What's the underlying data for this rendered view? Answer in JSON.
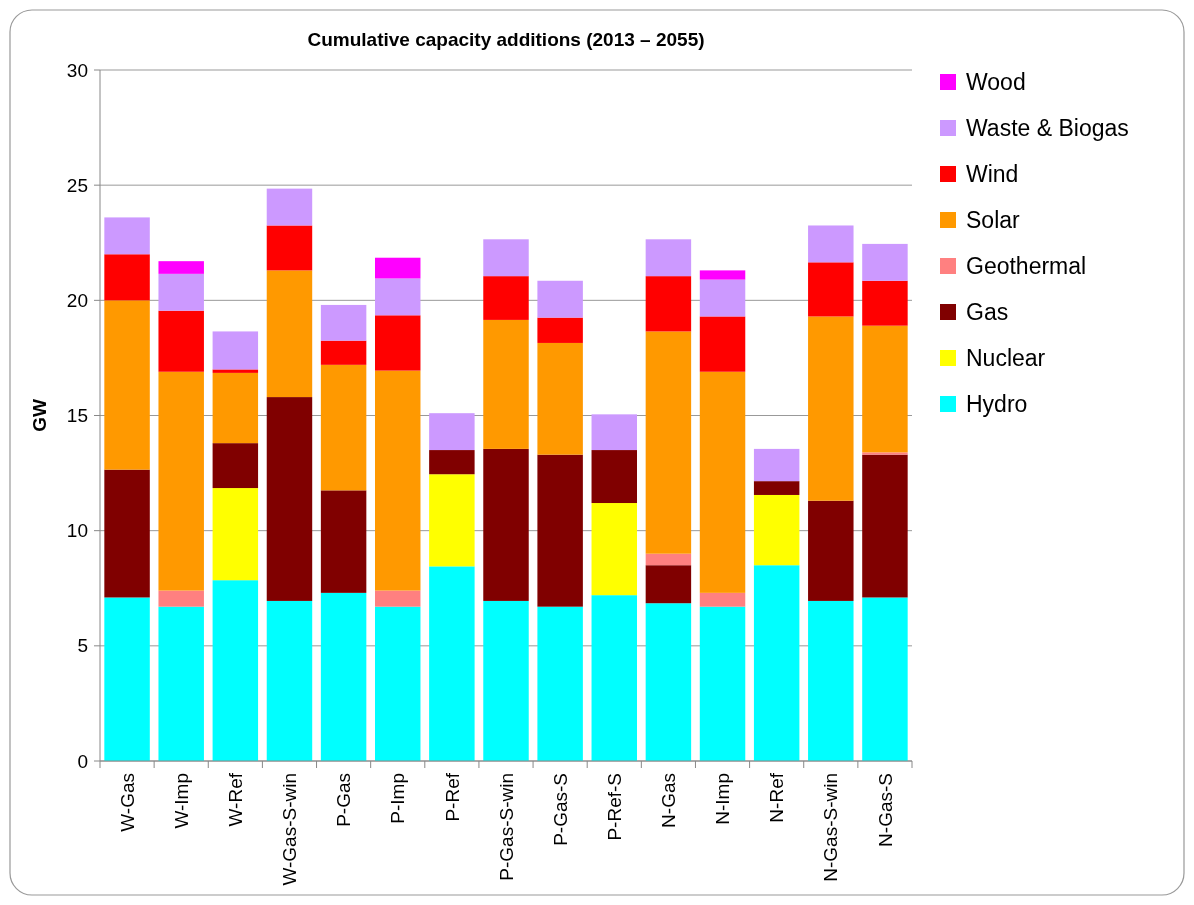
{
  "chart_data": {
    "type": "bar",
    "title": "Cumulative capacity additions (2013 – 2055)",
    "ylabel": "GW",
    "categories": [
      "W-Gas",
      "W-Imp",
      "W-Ref",
      "W-Gas-S-win",
      "P-Gas",
      "P-Imp",
      "P-Ref",
      "P-Gas-S-win",
      "P-Gas-S",
      "P-Ref-S",
      "N-Gas",
      "N-Imp",
      "N-Ref",
      "N-Gas-S-win",
      "N-Gas-S"
    ],
    "stacked": true,
    "ylim": [
      0,
      30
    ],
    "yticks": [
      0,
      5,
      10,
      15,
      20,
      25,
      30
    ],
    "grid": "y",
    "legend": "right",
    "series": [
      {
        "name": "Hydro",
        "color": "#00ffff",
        "values": [
          7.1,
          6.7,
          7.85,
          6.95,
          7.3,
          6.7,
          8.45,
          6.95,
          6.7,
          7.2,
          6.85,
          6.7,
          8.5,
          6.95,
          7.1
        ]
      },
      {
        "name": "Nuclear",
        "color": "#ffff00",
        "values": [
          null,
          null,
          4.0,
          null,
          null,
          null,
          4.0,
          null,
          null,
          4.0,
          null,
          null,
          3.05,
          null,
          null
        ]
      },
      {
        "name": "Gas",
        "color": "#800000",
        "values": [
          5.55,
          null,
          1.95,
          8.85,
          4.45,
          null,
          1.05,
          6.6,
          6.6,
          2.3,
          1.65,
          null,
          0.6,
          4.35,
          6.2
        ]
      },
      {
        "name": "Geothermal",
        "color": "#ff8080",
        "values": [
          null,
          0.7,
          null,
          null,
          null,
          0.7,
          null,
          null,
          null,
          null,
          0.5,
          0.6,
          null,
          null,
          0.1
        ]
      },
      {
        "name": "Solar",
        "color": "#ff9900",
        "values": [
          7.35,
          9.5,
          3.05,
          5.5,
          5.45,
          9.55,
          null,
          5.6,
          4.85,
          null,
          9.65,
          9.6,
          null,
          8.0,
          5.5
        ]
      },
      {
        "name": "Wind",
        "color": "#ff0000",
        "values": [
          2.0,
          2.65,
          0.15,
          1.95,
          1.05,
          2.4,
          null,
          1.9,
          1.1,
          null,
          2.4,
          2.4,
          null,
          2.35,
          1.95
        ]
      },
      {
        "name": "Waste & Biogas",
        "color": "#cc99ff",
        "values": [
          1.6,
          1.6,
          1.65,
          1.6,
          1.55,
          1.6,
          1.6,
          1.6,
          1.6,
          1.55,
          1.6,
          1.6,
          1.4,
          1.6,
          1.6
        ]
      },
      {
        "name": "Wood",
        "color": "#ff00ff",
        "values": [
          null,
          0.55,
          null,
          null,
          null,
          0.9,
          null,
          null,
          null,
          null,
          null,
          0.4,
          null,
          null,
          null
        ]
      }
    ]
  }
}
